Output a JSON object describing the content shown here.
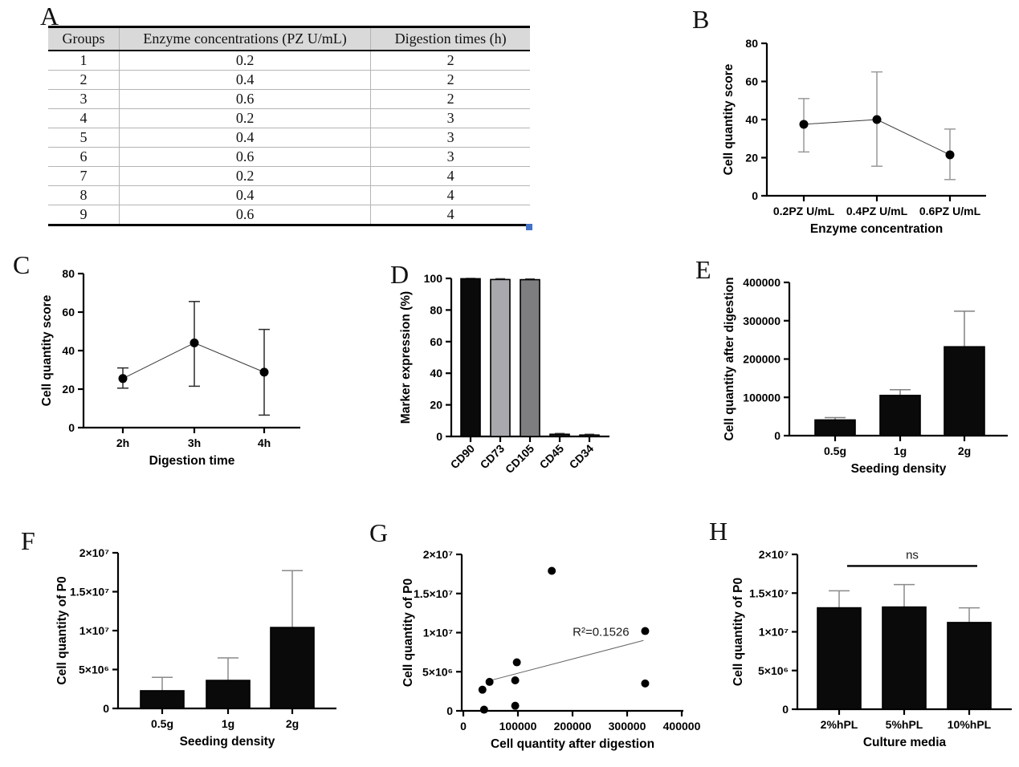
{
  "figure": {
    "panel_labels": [
      "A",
      "B",
      "C",
      "D",
      "E",
      "F",
      "G",
      "H"
    ]
  },
  "table": {
    "headers": [
      "Groups",
      "Enzyme concentrations (PZ U/mL)",
      "Digestion times (h)"
    ],
    "rows": [
      [
        "1",
        "0.2",
        "2"
      ],
      [
        "2",
        "0.4",
        "2"
      ],
      [
        "3",
        "0.6",
        "2"
      ],
      [
        "4",
        "0.2",
        "3"
      ],
      [
        "5",
        "0.4",
        "3"
      ],
      [
        "6",
        "0.6",
        "3"
      ],
      [
        "7",
        "0.2",
        "4"
      ],
      [
        "8",
        "0.4",
        "4"
      ],
      [
        "9",
        "0.6",
        "4"
      ]
    ]
  },
  "colors": {
    "bar_black": "#0a0a0a",
    "bar_light_gray": "#a9a9ad",
    "bar_mid_gray": "#7e7e81",
    "error_gray": "#8a8a8a",
    "table_header_bg": "#d9d9d9",
    "resize_handle_blue": "#4472c4"
  },
  "chart_data": [
    {
      "id": "B",
      "type": "line",
      "categories": [
        "0.2PZ U/mL",
        "0.4PZ U/mL",
        "0.6PZ U/mL"
      ],
      "series": [
        {
          "name": "Cell quantity score",
          "means": [
            37.5,
            40,
            21.5
          ],
          "err_lo": [
            23,
            15.5,
            8.5
          ],
          "err_hi": [
            51,
            65,
            35
          ]
        }
      ],
      "xlabel": "Enzyme concentration",
      "ylabel": "Cell quantity score",
      "ylim": [
        0,
        80
      ],
      "yticks": [
        0,
        20,
        40,
        60,
        80
      ],
      "grid": false
    },
    {
      "id": "C",
      "type": "line",
      "categories": [
        "2h",
        "3h",
        "4h"
      ],
      "series": [
        {
          "name": "Cell quantity score",
          "means": [
            25.5,
            44,
            28.8
          ],
          "err_lo": [
            20.5,
            21.5,
            6.5
          ],
          "err_hi": [
            31,
            65.5,
            51
          ]
        }
      ],
      "xlabel": "Digestion time",
      "ylabel": "Cell quantity score",
      "ylim": [
        0,
        80
      ],
      "yticks": [
        0,
        20,
        40,
        60,
        80
      ],
      "grid": false
    },
    {
      "id": "D",
      "type": "bar",
      "categories": [
        "CD90",
        "CD73",
        "CD105",
        "CD45",
        "CD34"
      ],
      "values": [
        99.8,
        99.3,
        99.2,
        1.4,
        0.9
      ],
      "err_hi": [
        100,
        99.8,
        99.7,
        1.9,
        1.4
      ],
      "bar_colors": [
        "#0a0a0a",
        "#a9a9ad",
        "#7e7e81",
        "#1a1a1a",
        "#9a9a9e"
      ],
      "rotate_xticks": true,
      "xlabel": "",
      "ylabel": "Marker expression (%)",
      "ylim": [
        0,
        100
      ],
      "yticks": [
        0,
        20,
        40,
        60,
        80,
        100
      ],
      "grid": false
    },
    {
      "id": "E",
      "type": "bar",
      "categories": [
        "0.5g",
        "1g",
        "2g"
      ],
      "values": [
        41000,
        105000,
        232000
      ],
      "err_hi": [
        47000,
        120000,
        325000
      ],
      "bar_colors": [
        "#0a0a0a",
        "#0a0a0a",
        "#0a0a0a"
      ],
      "xlabel": "Seeding density",
      "ylabel": "Cell quantity after digestion",
      "ylim": [
        0,
        400000
      ],
      "yticks": [
        0,
        100000,
        200000,
        300000,
        400000
      ],
      "ytick_labels": [
        "0",
        "100000",
        "200000",
        "300000",
        "400000"
      ],
      "grid": false
    },
    {
      "id": "F",
      "type": "bar",
      "categories": [
        "0.5g",
        "1g",
        "2g"
      ],
      "values": [
        2270000,
        3600000,
        10400000
      ],
      "err_hi": [
        4000000,
        6500000,
        17700000
      ],
      "bar_colors": [
        "#0a0a0a",
        "#0a0a0a",
        "#0a0a0a"
      ],
      "xlabel": "Seeding density",
      "ylabel": "Cell quantity of P0",
      "ylim": [
        0,
        20000000
      ],
      "yticks": [
        0,
        5000000,
        10000000,
        15000000,
        20000000
      ],
      "ytick_labels": [
        "0",
        "5×10⁶",
        "1×10⁷",
        "1.5×10⁷",
        "2×10⁷"
      ],
      "grid": false
    },
    {
      "id": "G",
      "type": "scatter",
      "points": [
        [
          38000,
          150000
        ],
        [
          35000,
          2700000
        ],
        [
          48000,
          3700000
        ],
        [
          95000,
          650000
        ],
        [
          95000,
          3900000
        ],
        [
          98000,
          6200000
        ],
        [
          162000,
          17900000
        ],
        [
          333000,
          10200000
        ],
        [
          333000,
          3500000
        ]
      ],
      "trendline": {
        "x1": 45000,
        "y1": 3800000,
        "x2": 330000,
        "y2": 9000000
      },
      "annotation": {
        "text": "R²=0.1526",
        "x": 252000,
        "y": 9600000
      },
      "xlabel": "Cell quantity after digestion",
      "ylabel": "Cell quantity of P0",
      "xlim": [
        0,
        400000
      ],
      "xticks": [
        0,
        100000,
        200000,
        300000,
        400000
      ],
      "xtick_labels": [
        "0",
        "100000",
        "200000",
        "300000",
        "400000"
      ],
      "ylim": [
        0,
        20000000
      ],
      "yticks": [
        0,
        5000000,
        10000000,
        15000000,
        20000000
      ],
      "ytick_labels": [
        "0",
        "5×10⁶",
        "1×10⁷",
        "1.5×10⁷",
        "2×10⁷"
      ],
      "grid": false
    },
    {
      "id": "H",
      "type": "bar",
      "categories": [
        "2%hPL",
        "5%hPL",
        "10%hPL"
      ],
      "values": [
        13100000,
        13200000,
        11200000
      ],
      "err_hi": [
        15300000,
        16100000,
        13100000
      ],
      "bar_colors": [
        "#0a0a0a",
        "#0a0a0a",
        "#0a0a0a"
      ],
      "comparison": {
        "label": "ns",
        "x_from": "2%hPL",
        "x_to": "10%hPL",
        "y": 18500000
      },
      "xlabel": "Culture media",
      "ylabel": "Cell quantity of P0",
      "ylim": [
        0,
        20000000
      ],
      "yticks": [
        0,
        5000000,
        10000000,
        15000000,
        20000000
      ],
      "ytick_labels": [
        "0",
        "5×10⁶",
        "1×10⁷",
        "1.5×10⁷",
        "2×10⁷"
      ],
      "grid": false
    }
  ]
}
